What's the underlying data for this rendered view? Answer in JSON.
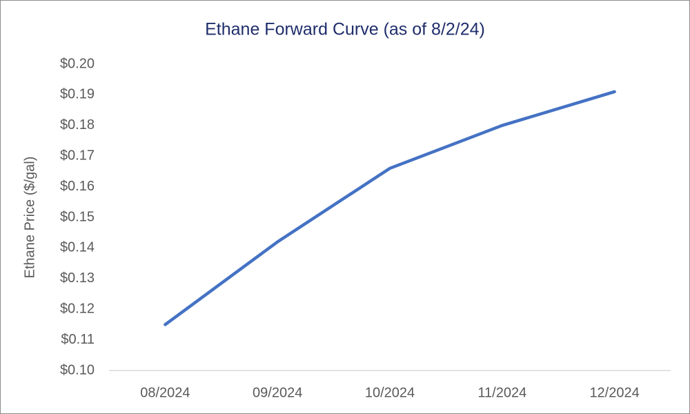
{
  "chart_data": {
    "type": "line",
    "title": "Ethane Forward Curve (as of 8/2/24)",
    "y_label": "Ethane Price ($/gal)",
    "categories": [
      "08/2024",
      "09/2024",
      "10/2024",
      "11/2024",
      "12/2024"
    ],
    "values": [
      0.115,
      0.142,
      0.166,
      0.18,
      0.191
    ],
    "color": "#4472c4",
    "ylim": [
      0.1,
      0.2
    ],
    "yticks": [
      {
        "value": 0.1,
        "label": "$0.10"
      },
      {
        "value": 0.11,
        "label": "$0.11"
      },
      {
        "value": 0.12,
        "label": "$0.12"
      },
      {
        "value": 0.13,
        "label": "$0.13"
      },
      {
        "value": 0.14,
        "label": "$0.14"
      },
      {
        "value": 0.15,
        "label": "$0.15"
      },
      {
        "value": 0.16,
        "label": "$0.16"
      },
      {
        "value": 0.17,
        "label": "$0.17"
      },
      {
        "value": 0.18,
        "label": "$0.18"
      },
      {
        "value": 0.19,
        "label": "$0.19"
      },
      {
        "value": 0.2,
        "label": "$0.20"
      }
    ],
    "grid": false
  }
}
